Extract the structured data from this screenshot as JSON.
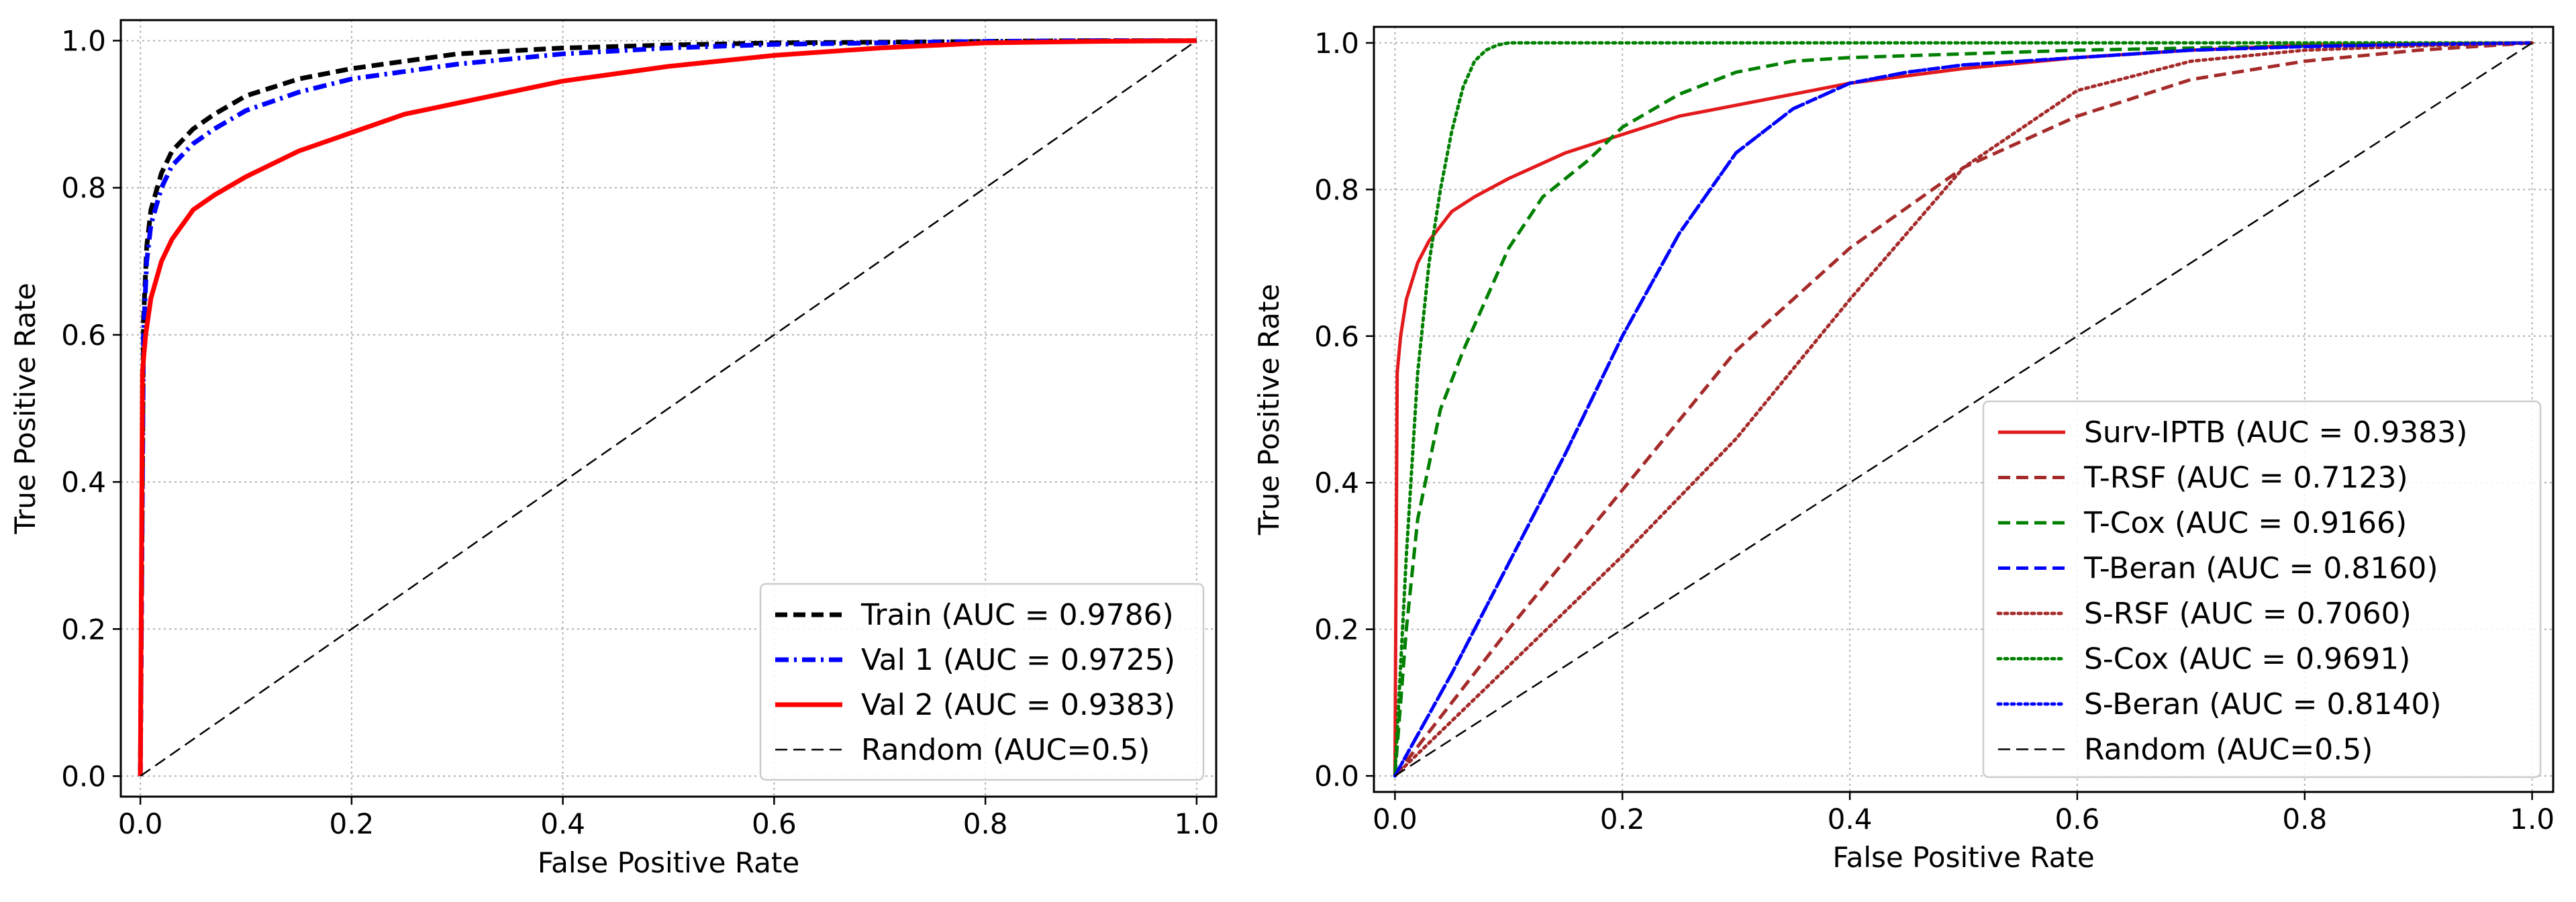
{
  "chart_data": [
    {
      "type": "line",
      "xlabel": "False Positive Rate",
      "ylabel": "True Positive Rate",
      "xlim": [
        0,
        1
      ],
      "ylim": [
        0,
        1
      ],
      "xticks": [
        "0.0",
        "0.2",
        "0.4",
        "0.6",
        "0.8",
        "1.0"
      ],
      "yticks": [
        "0.0",
        "0.2",
        "0.4",
        "0.6",
        "0.8",
        "1.0"
      ],
      "grid": true,
      "legend_position": "lower-right",
      "series": [
        {
          "name": "Train (AUC = 0.9786)",
          "color": "#000000",
          "style": "dashed",
          "width": "thick",
          "x": [
            0,
            0.003,
            0.006,
            0.01,
            0.02,
            0.03,
            0.05,
            0.07,
            0.1,
            0.15,
            0.2,
            0.3,
            0.4,
            0.5,
            0.6,
            0.7,
            0.8,
            0.9,
            1.0
          ],
          "y": [
            0,
            0.62,
            0.72,
            0.77,
            0.82,
            0.85,
            0.88,
            0.9,
            0.925,
            0.948,
            0.962,
            0.982,
            0.99,
            0.994,
            0.997,
            0.998,
            0.999,
            1.0,
            1.0
          ]
        },
        {
          "name": "Val 1 (AUC = 0.9725)",
          "color": "#0000ff",
          "style": "dashdot",
          "width": "thick",
          "x": [
            0,
            0.003,
            0.006,
            0.01,
            0.02,
            0.03,
            0.05,
            0.07,
            0.1,
            0.15,
            0.2,
            0.3,
            0.4,
            0.5,
            0.6,
            0.7,
            0.8,
            0.9,
            1.0
          ],
          "y": [
            0,
            0.6,
            0.7,
            0.75,
            0.8,
            0.83,
            0.86,
            0.88,
            0.905,
            0.93,
            0.948,
            0.968,
            0.982,
            0.99,
            0.995,
            0.997,
            0.999,
            1.0,
            1.0
          ]
        },
        {
          "name": "Val 2 (AUC = 0.9383)",
          "color": "#ff0000",
          "style": "solid",
          "width": "thick",
          "x": [
            0,
            0.002,
            0.005,
            0.01,
            0.02,
            0.03,
            0.05,
            0.07,
            0.1,
            0.15,
            0.2,
            0.25,
            0.3,
            0.4,
            0.5,
            0.6,
            0.7,
            0.8,
            0.9,
            1.0
          ],
          "y": [
            0,
            0.55,
            0.6,
            0.65,
            0.7,
            0.73,
            0.77,
            0.79,
            0.815,
            0.85,
            0.875,
            0.9,
            0.915,
            0.945,
            0.965,
            0.98,
            0.99,
            0.997,
            0.999,
            1.0
          ]
        },
        {
          "name": "Random (AUC=0.5)",
          "color": "#000000",
          "style": "dashed",
          "width": "thin",
          "x": [
            0,
            1
          ],
          "y": [
            0,
            1
          ]
        }
      ]
    },
    {
      "type": "line",
      "xlabel": "False Positive Rate",
      "ylabel": "True Positive Rate",
      "xlim": [
        0,
        1
      ],
      "ylim": [
        0,
        1
      ],
      "xticks": [
        "0.0",
        "0.2",
        "0.4",
        "0.6",
        "0.8",
        "1.0"
      ],
      "yticks": [
        "0.0",
        "0.2",
        "0.4",
        "0.6",
        "0.8",
        "1.0"
      ],
      "grid": true,
      "legend_position": "lower-right",
      "series": [
        {
          "name": "Surv-IPTB (AUC = 0.9383)",
          "color": "#e31a1c",
          "style": "solid",
          "width": "medium",
          "x": [
            0,
            0.002,
            0.005,
            0.01,
            0.02,
            0.03,
            0.05,
            0.07,
            0.1,
            0.15,
            0.2,
            0.25,
            0.3,
            0.4,
            0.5,
            0.6,
            0.7,
            0.8,
            0.9,
            1.0
          ],
          "y": [
            0,
            0.55,
            0.6,
            0.65,
            0.7,
            0.73,
            0.77,
            0.79,
            0.815,
            0.85,
            0.875,
            0.9,
            0.915,
            0.945,
            0.965,
            0.98,
            0.99,
            0.997,
            0.999,
            1.0
          ]
        },
        {
          "name": "T-RSF (AUC = 0.7123)",
          "color": "#a52a2a",
          "style": "dashed",
          "width": "medium",
          "x": [
            0,
            0.1,
            0.2,
            0.3,
            0.4,
            0.5,
            0.6,
            0.7,
            0.8,
            0.9,
            1.0
          ],
          "y": [
            0,
            0.2,
            0.39,
            0.58,
            0.72,
            0.83,
            0.9,
            0.95,
            0.975,
            0.99,
            1.0
          ]
        },
        {
          "name": "T-Cox (AUC = 0.9166)",
          "color": "#008000",
          "style": "dashed",
          "width": "medium",
          "x": [
            0,
            0.01,
            0.02,
            0.04,
            0.06,
            0.1,
            0.13,
            0.17,
            0.2,
            0.25,
            0.3,
            0.35,
            0.4,
            0.5,
            0.6,
            0.7,
            0.8,
            0.9,
            1.0
          ],
          "y": [
            0,
            0.2,
            0.35,
            0.5,
            0.58,
            0.72,
            0.79,
            0.84,
            0.885,
            0.93,
            0.96,
            0.975,
            0.98,
            0.985,
            0.99,
            0.993,
            0.996,
            0.998,
            1.0
          ]
        },
        {
          "name": "T-Beran (AUC = 0.8160)",
          "color": "#0000ff",
          "style": "dashed",
          "width": "medium",
          "x": [
            0,
            0.05,
            0.1,
            0.15,
            0.2,
            0.25,
            0.3,
            0.35,
            0.4,
            0.45,
            0.5,
            0.6,
            0.7,
            0.8,
            0.9,
            1.0
          ],
          "y": [
            0,
            0.14,
            0.29,
            0.44,
            0.6,
            0.74,
            0.85,
            0.91,
            0.945,
            0.96,
            0.97,
            0.98,
            0.99,
            0.995,
            0.998,
            1.0
          ]
        },
        {
          "name": "S-RSF (AUC = 0.7060)",
          "color": "#a52a2a",
          "style": "dotted",
          "width": "medium",
          "x": [
            0,
            0.1,
            0.2,
            0.3,
            0.4,
            0.5,
            0.6,
            0.7,
            0.8,
            0.9,
            1.0
          ],
          "y": [
            0,
            0.15,
            0.3,
            0.46,
            0.65,
            0.83,
            0.935,
            0.975,
            0.99,
            0.996,
            1.0
          ]
        },
        {
          "name": "S-Cox (AUC = 0.9691)",
          "color": "#008000",
          "style": "dotted",
          "width": "medium",
          "x": [
            0,
            0.01,
            0.02,
            0.03,
            0.04,
            0.05,
            0.06,
            0.07,
            0.08,
            0.09,
            0.1,
            0.2,
            0.4,
            0.6,
            0.8,
            1.0
          ],
          "y": [
            0,
            0.3,
            0.55,
            0.7,
            0.8,
            0.88,
            0.94,
            0.975,
            0.99,
            0.997,
            1.0,
            1.0,
            1.0,
            1.0,
            1.0,
            1.0
          ]
        },
        {
          "name": "S-Beran (AUC = 0.8140)",
          "color": "#0000ff",
          "style": "dotted",
          "width": "medium",
          "x": [
            0,
            0.05,
            0.1,
            0.15,
            0.2,
            0.25,
            0.3,
            0.35,
            0.4,
            0.45,
            0.5,
            0.6,
            0.7,
            0.8,
            0.9,
            1.0
          ],
          "y": [
            0,
            0.14,
            0.29,
            0.44,
            0.6,
            0.74,
            0.85,
            0.91,
            0.945,
            0.96,
            0.97,
            0.98,
            0.99,
            0.995,
            0.998,
            1.0
          ]
        },
        {
          "name": "Random (AUC=0.5)",
          "color": "#000000",
          "style": "dashed",
          "width": "thin",
          "x": [
            0,
            1
          ],
          "y": [
            0,
            1
          ]
        }
      ]
    }
  ]
}
